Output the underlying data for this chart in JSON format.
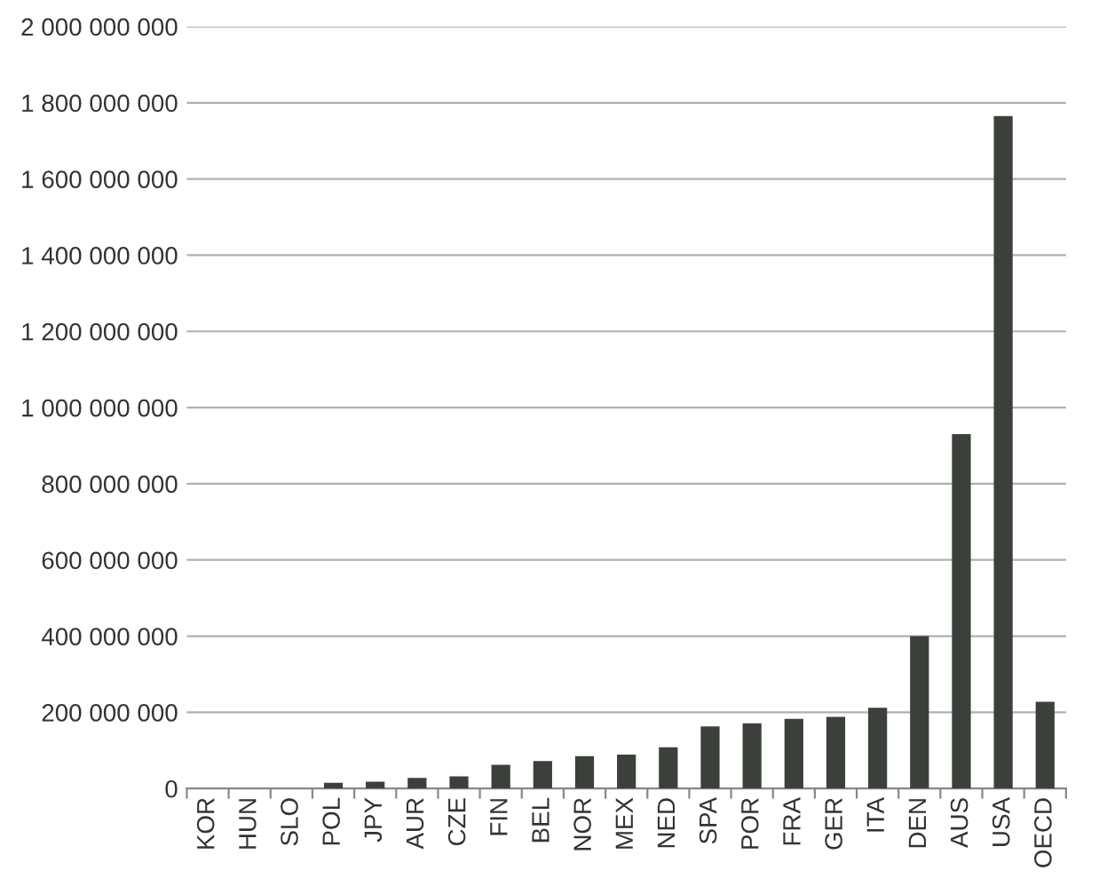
{
  "chart_data": {
    "type": "bar",
    "categories": [
      "KOR",
      "HUN",
      "SLO",
      "POL",
      "JPY",
      "AUR",
      "CZE",
      "FIN",
      "BEL",
      "NOR",
      "MEX",
      "NED",
      "SPA",
      "POR",
      "FRA",
      "GER",
      "ITA",
      "DEN",
      "AUS",
      "USA",
      "OECD"
    ],
    "values": [
      0,
      0,
      0,
      15000000,
      18000000,
      28000000,
      32000000,
      62000000,
      72000000,
      85000000,
      89000000,
      108000000,
      163000000,
      171000000,
      183000000,
      188000000,
      212000000,
      400000000,
      930000000,
      1765000000,
      228000000
    ],
    "color": "#3b403b",
    "ylim": [
      0,
      2000000000
    ],
    "yticks": [
      {
        "value": 0,
        "label": "0"
      },
      {
        "value": 200000000,
        "label": "200 000 000"
      },
      {
        "value": 400000000,
        "label": "400 000 000"
      },
      {
        "value": 600000000,
        "label": "600 000 000"
      },
      {
        "value": 800000000,
        "label": "800 000 000"
      },
      {
        "value": 1000000000,
        "label": "1 000 000 000"
      },
      {
        "value": 1200000000,
        "label": "1 200 000 000"
      },
      {
        "value": 1400000000,
        "label": "1 400 000 000"
      },
      {
        "value": 1600000000,
        "label": "1 600 000 000"
      },
      {
        "value": 1800000000,
        "label": "1 800 000 000"
      },
      {
        "value": 2000000000,
        "label": "2 000 000 000"
      }
    ],
    "grid": "y"
  }
}
